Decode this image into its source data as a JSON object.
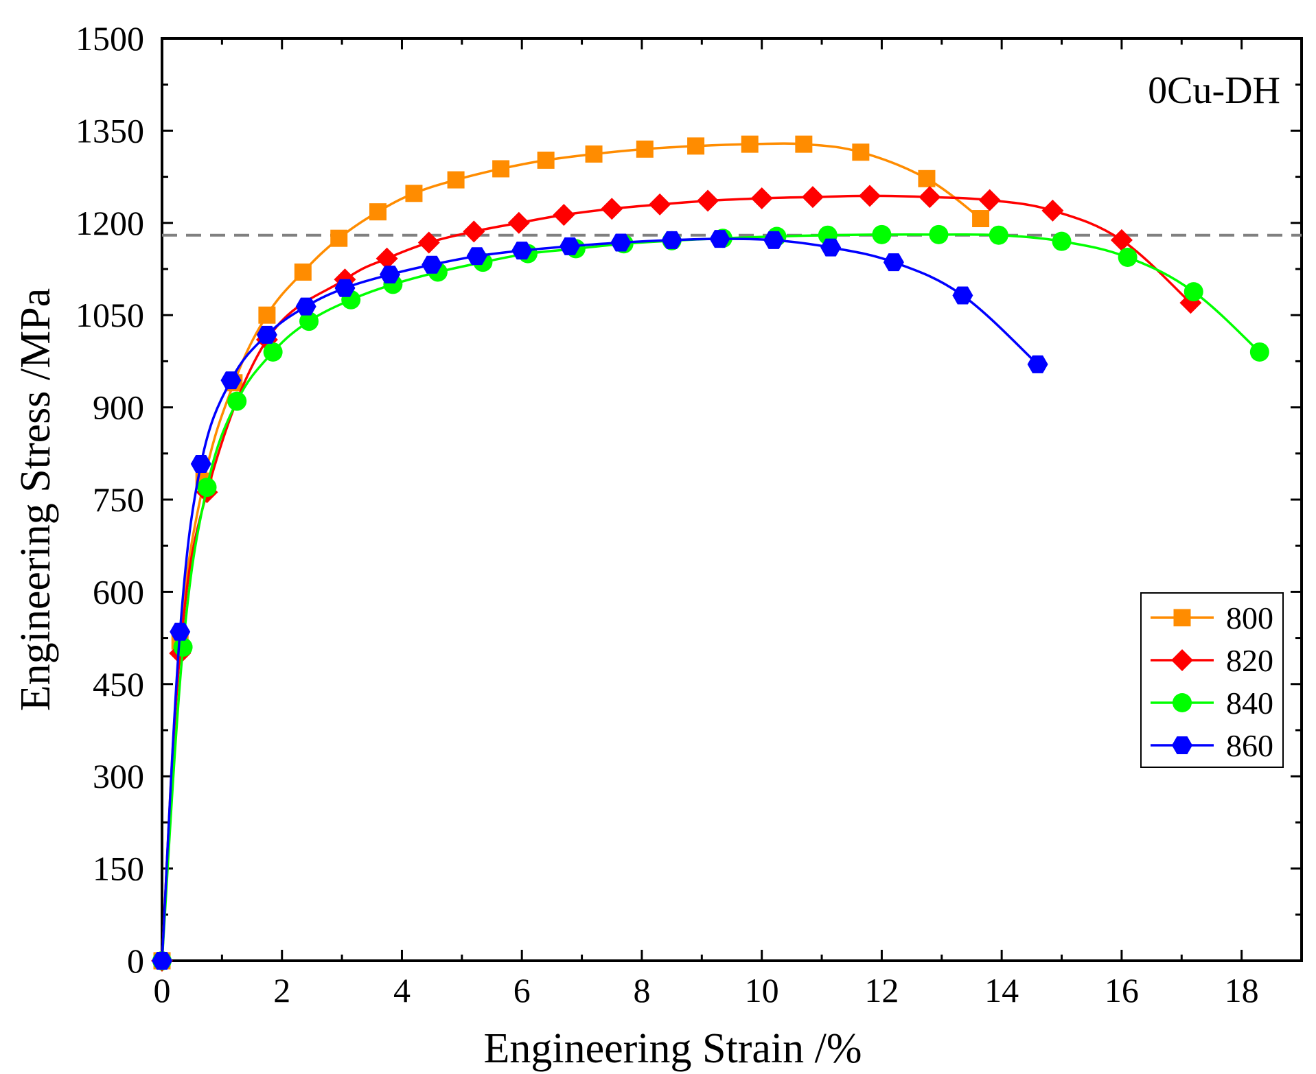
{
  "chart_data": {
    "type": "line",
    "title": "",
    "annotation": "0Cu-DH",
    "xlabel": "Engineering Strain /%",
    "ylabel": "Engineering Stress /MPa",
    "xlim": [
      0,
      19
    ],
    "ylim": [
      0,
      1500
    ],
    "xticks": [
      0,
      2,
      4,
      6,
      8,
      10,
      12,
      14,
      16,
      18
    ],
    "yticks": [
      0,
      150,
      300,
      450,
      600,
      750,
      900,
      1050,
      1200,
      1350,
      1500
    ],
    "reference_line": {
      "y": 1180,
      "style": "dashed",
      "color": "#808080"
    },
    "legend_position": "right",
    "series": [
      {
        "name": "800",
        "color": "#ff8c00",
        "marker": "square",
        "x": [
          0.0,
          0.3,
          0.7,
          1.2,
          1.75,
          2.35,
          2.95,
          3.6,
          4.2,
          4.9,
          5.65,
          6.4,
          7.2,
          8.05,
          8.9,
          9.8,
          10.7,
          11.65,
          12.75,
          13.65
        ],
        "y": [
          0,
          520,
          780,
          940,
          1050,
          1120,
          1175,
          1218,
          1248,
          1270,
          1288,
          1302,
          1312,
          1320,
          1325,
          1328,
          1328,
          1315,
          1272,
          1207
        ]
      },
      {
        "name": "820",
        "color": "#ff0000",
        "marker": "diamond",
        "x": [
          0.0,
          0.3,
          0.75,
          1.75,
          3.05,
          3.75,
          4.45,
          5.2,
          5.95,
          6.7,
          7.5,
          8.3,
          9.1,
          10.0,
          10.85,
          11.8,
          12.8,
          13.8,
          14.85,
          16.0,
          17.15
        ],
        "y": [
          0,
          500,
          762,
          1010,
          1108,
          1142,
          1168,
          1186,
          1200,
          1213,
          1223,
          1230,
          1236,
          1240,
          1242,
          1244,
          1242,
          1237,
          1220,
          1172,
          1070
        ]
      },
      {
        "name": "840",
        "color": "#00ff00",
        "marker": "circle",
        "x": [
          0.0,
          0.35,
          0.75,
          1.25,
          1.85,
          2.45,
          3.15,
          3.85,
          4.6,
          5.35,
          6.1,
          6.9,
          7.7,
          8.5,
          9.35,
          10.25,
          11.1,
          12.0,
          12.95,
          13.95,
          15.0,
          16.1,
          17.2,
          18.3
        ],
        "y": [
          0,
          510,
          770,
          910,
          990,
          1040,
          1075,
          1100,
          1120,
          1136,
          1150,
          1158,
          1166,
          1171,
          1175,
          1178,
          1180,
          1181,
          1181,
          1180,
          1170,
          1144,
          1088,
          990
        ]
      },
      {
        "name": "860",
        "color": "#0000ff",
        "marker": "hexagon",
        "x": [
          0.0,
          0.3,
          0.65,
          1.15,
          1.75,
          2.4,
          3.05,
          3.8,
          4.5,
          5.25,
          6.0,
          6.8,
          7.65,
          8.5,
          9.3,
          10.2,
          11.15,
          12.2,
          13.35,
          14.6
        ],
        "y": [
          0,
          535,
          808,
          944,
          1018,
          1064,
          1094,
          1116,
          1132,
          1146,
          1155,
          1162,
          1168,
          1172,
          1174,
          1172,
          1160,
          1136,
          1082,
          970
        ]
      }
    ]
  }
}
